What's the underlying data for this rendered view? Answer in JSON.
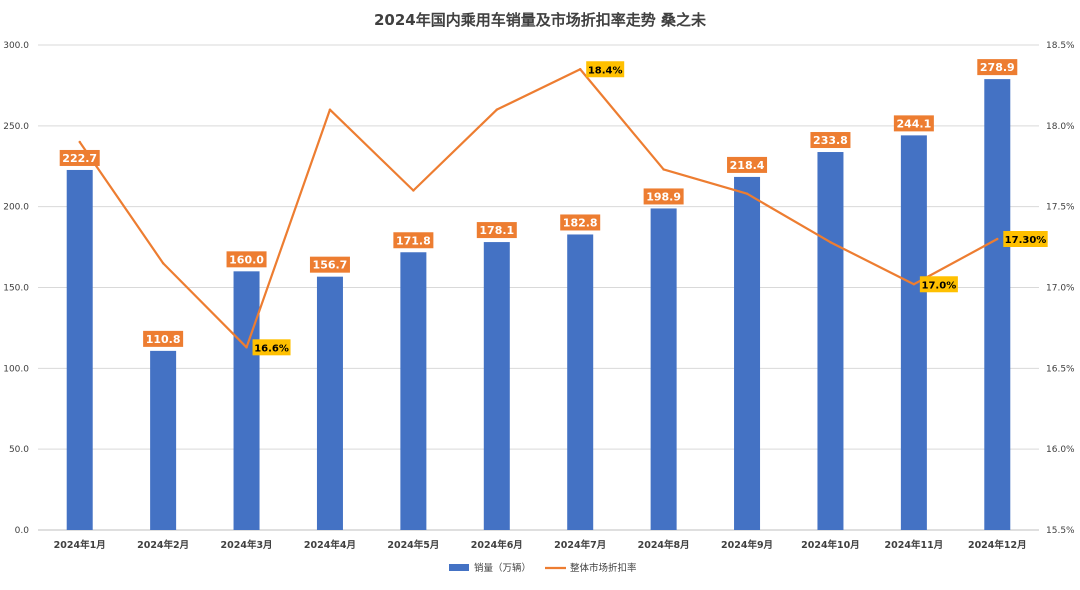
{
  "chart_data": {
    "type": "bar+line",
    "title": "2024年国内乘用车销量及市场折扣率走势 桑之未",
    "categories": [
      "2024年1月",
      "2024年2月",
      "2024年3月",
      "2024年4月",
      "2024年5月",
      "2024年6月",
      "2024年7月",
      "2024年8月",
      "2024年9月",
      "2024年10月",
      "2024年11月",
      "2024年12月"
    ],
    "series": [
      {
        "name": "销量（万辆）",
        "kind": "bar",
        "axis": "left",
        "color": "#4472c4",
        "values": [
          222.7,
          110.8,
          160.0,
          156.7,
          171.8,
          178.1,
          182.8,
          198.9,
          218.4,
          233.8,
          244.1,
          278.9
        ],
        "labels": [
          "222.7",
          "110.8",
          "160.0",
          "156.7",
          "171.8",
          "178.1",
          "182.8",
          "198.9",
          "218.4",
          "233.8",
          "244.1",
          "278.9"
        ]
      },
      {
        "name": "整体市场折扣率",
        "kind": "line",
        "axis": "right",
        "color": "#ed7d31",
        "values": [
          17.9,
          17.15,
          16.63,
          18.1,
          17.6,
          18.1,
          18.35,
          17.73,
          17.58,
          17.28,
          17.02,
          17.3
        ],
        "labeled_points": [
          {
            "index": 2,
            "text": "16.6%"
          },
          {
            "index": 6,
            "text": "18.4%"
          },
          {
            "index": 10,
            "text": "17.0%"
          },
          {
            "index": 11,
            "text": "17.30%"
          }
        ]
      }
    ],
    "y_left": {
      "min": 0,
      "max": 300,
      "ticks": [
        "0.0",
        "50.0",
        "100.0",
        "150.0",
        "200.0",
        "250.0",
        "300.0"
      ]
    },
    "y_right": {
      "min": 15.5,
      "max": 18.5,
      "ticks": [
        "15.5%",
        "16.0%",
        "16.5%",
        "17.0%",
        "17.5%",
        "18.0%",
        "18.5%"
      ]
    },
    "grid": true,
    "legend_position": "bottom",
    "colors": {
      "bar_label_bg": "#ed7d31",
      "line_label_bg": "#ffc000"
    }
  }
}
